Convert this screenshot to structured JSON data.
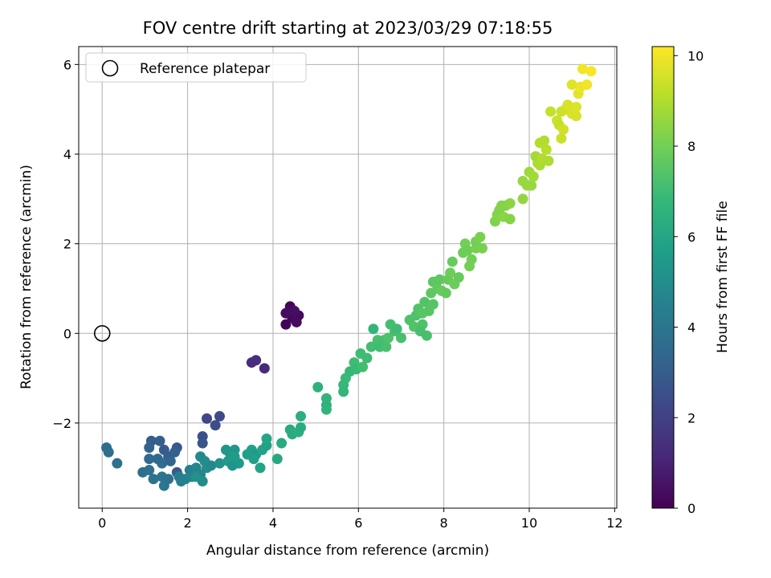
{
  "chart_data": {
    "type": "scatter",
    "title": "FOV centre drift starting at 2023/03/29 07:18:55",
    "xlabel": "Angular distance from reference (arcmin)",
    "ylabel": "Rotation from reference (arcmin)",
    "xlim": [
      -0.55,
      12.05
    ],
    "ylim": [
      -3.9,
      6.4
    ],
    "xticks": [
      0,
      2,
      4,
      6,
      8,
      10,
      12
    ],
    "yticks": [
      -2,
      0,
      2,
      4,
      6
    ],
    "grid": true,
    "legend": {
      "position": "top-left",
      "entries": [
        "Reference platepar"
      ]
    },
    "reference_point": {
      "x": 0,
      "y": 0,
      "label": "Reference platepar"
    },
    "colorbar": {
      "label": "Hours from first FF file",
      "range": [
        0,
        10.2
      ],
      "ticks": [
        0,
        2,
        4,
        6,
        8,
        10
      ],
      "colormap": "viridis",
      "colors": [
        "#440154",
        "#482878",
        "#3e4989",
        "#31688e",
        "#26828e",
        "#1f9e89",
        "#35b779",
        "#6ece58",
        "#b5de2b",
        "#fde725"
      ]
    },
    "points": [
      {
        "x": 4.3,
        "y": 0.2,
        "c": 0.1
      },
      {
        "x": 4.45,
        "y": 0.35,
        "c": 0.2
      },
      {
        "x": 4.4,
        "y": 0.6,
        "c": 0.15
      },
      {
        "x": 4.6,
        "y": 0.4,
        "c": 0.25
      },
      {
        "x": 4.55,
        "y": 0.25,
        "c": 0.3
      },
      {
        "x": 4.3,
        "y": 0.45,
        "c": 0.35
      },
      {
        "x": 4.5,
        "y": 0.5,
        "c": 0.4
      },
      {
        "x": 3.5,
        "y": -0.65,
        "c": 1.3
      },
      {
        "x": 3.6,
        "y": -0.6,
        "c": 1.4
      },
      {
        "x": 3.8,
        "y": -0.78,
        "c": 1.2
      },
      {
        "x": 2.45,
        "y": -1.9,
        "c": 2.2
      },
      {
        "x": 2.75,
        "y": -1.85,
        "c": 2.3
      },
      {
        "x": 2.65,
        "y": -2.05,
        "c": 2.4
      },
      {
        "x": 2.35,
        "y": -2.3,
        "c": 2.6
      },
      {
        "x": 2.35,
        "y": -2.45,
        "c": 2.7
      },
      {
        "x": 1.15,
        "y": -2.4,
        "c": 3.0
      },
      {
        "x": 1.35,
        "y": -2.4,
        "c": 3.1
      },
      {
        "x": 1.1,
        "y": -2.55,
        "c": 3.2
      },
      {
        "x": 1.45,
        "y": -2.6,
        "c": 2.9
      },
      {
        "x": 1.75,
        "y": -2.55,
        "c": 2.8
      },
      {
        "x": 1.55,
        "y": -2.75,
        "c": 3.0
      },
      {
        "x": 1.7,
        "y": -2.65,
        "c": 3.1
      },
      {
        "x": 1.1,
        "y": -2.8,
        "c": 3.5
      },
      {
        "x": 1.3,
        "y": -2.8,
        "c": 3.4
      },
      {
        "x": 1.4,
        "y": -2.9,
        "c": 3.6
      },
      {
        "x": 1.6,
        "y": -2.85,
        "c": 3.3
      },
      {
        "x": 0.95,
        "y": -3.1,
        "c": 3.7
      },
      {
        "x": 1.1,
        "y": -3.05,
        "c": 3.8
      },
      {
        "x": 1.2,
        "y": -3.25,
        "c": 3.9
      },
      {
        "x": 1.4,
        "y": -3.2,
        "c": 4.0
      },
      {
        "x": 1.45,
        "y": -3.4,
        "c": 4.1
      },
      {
        "x": 1.55,
        "y": -3.25,
        "c": 3.8
      },
      {
        "x": 1.75,
        "y": -3.1,
        "c": 2.9
      },
      {
        "x": 1.8,
        "y": -3.2,
        "c": 4.3
      },
      {
        "x": 1.85,
        "y": -3.3,
        "c": 4.4
      },
      {
        "x": 1.95,
        "y": -3.25,
        "c": 4.5
      },
      {
        "x": 2.1,
        "y": -3.2,
        "c": 4.6
      },
      {
        "x": 2.05,
        "y": -3.05,
        "c": 4.4
      },
      {
        "x": 2.2,
        "y": -3.0,
        "c": 4.7
      },
      {
        "x": 0.1,
        "y": -2.55,
        "c": 3.6
      },
      {
        "x": 0.15,
        "y": -2.65,
        "c": 3.7
      },
      {
        "x": 0.35,
        "y": -2.9,
        "c": 3.8
      },
      {
        "x": 2.3,
        "y": -2.75,
        "c": 4.8
      },
      {
        "x": 2.4,
        "y": -2.85,
        "c": 4.9
      },
      {
        "x": 2.45,
        "y": -3.0,
        "c": 5.0
      },
      {
        "x": 2.55,
        "y": -2.95,
        "c": 4.8
      },
      {
        "x": 2.3,
        "y": -3.15,
        "c": 4.7
      },
      {
        "x": 2.35,
        "y": -3.3,
        "c": 4.9
      },
      {
        "x": 2.2,
        "y": -3.2,
        "c": 5.1
      },
      {
        "x": 2.75,
        "y": -2.9,
        "c": 5.2
      },
      {
        "x": 2.9,
        "y": -2.6,
        "c": 5.3
      },
      {
        "x": 3.0,
        "y": -2.7,
        "c": 5.4
      },
      {
        "x": 2.95,
        "y": -2.85,
        "c": 5.5
      },
      {
        "x": 3.1,
        "y": -2.6,
        "c": 5.4
      },
      {
        "x": 3.1,
        "y": -2.75,
        "c": 5.6
      },
      {
        "x": 3.2,
        "y": -2.9,
        "c": 5.5
      },
      {
        "x": 3.05,
        "y": -2.95,
        "c": 5.3
      },
      {
        "x": 3.4,
        "y": -2.7,
        "c": 5.7
      },
      {
        "x": 3.5,
        "y": -2.6,
        "c": 5.8
      },
      {
        "x": 3.6,
        "y": -2.7,
        "c": 5.6
      },
      {
        "x": 3.55,
        "y": -2.8,
        "c": 5.7
      },
      {
        "x": 3.75,
        "y": -2.6,
        "c": 5.9
      },
      {
        "x": 3.85,
        "y": -2.5,
        "c": 5.8
      },
      {
        "x": 3.85,
        "y": -2.35,
        "c": 6.0
      },
      {
        "x": 3.7,
        "y": -3.0,
        "c": 5.9
      },
      {
        "x": 4.1,
        "y": -2.8,
        "c": 6.1
      },
      {
        "x": 4.2,
        "y": -2.45,
        "c": 6.2
      },
      {
        "x": 4.4,
        "y": -2.15,
        "c": 6.2
      },
      {
        "x": 4.45,
        "y": -2.25,
        "c": 6.3
      },
      {
        "x": 4.6,
        "y": -2.2,
        "c": 6.4
      },
      {
        "x": 4.65,
        "y": -2.1,
        "c": 6.3
      },
      {
        "x": 4.65,
        "y": -1.85,
        "c": 6.4
      },
      {
        "x": 5.05,
        "y": -1.2,
        "c": 6.5
      },
      {
        "x": 5.25,
        "y": -1.45,
        "c": 6.6
      },
      {
        "x": 5.25,
        "y": -1.6,
        "c": 6.5
      },
      {
        "x": 5.25,
        "y": -1.7,
        "c": 6.6
      },
      {
        "x": 5.65,
        "y": -1.3,
        "c": 6.7
      },
      {
        "x": 5.65,
        "y": -1.15,
        "c": 6.8
      },
      {
        "x": 5.7,
        "y": -1.0,
        "c": 6.9
      },
      {
        "x": 5.8,
        "y": -0.85,
        "c": 6.8
      },
      {
        "x": 5.9,
        "y": -0.65,
        "c": 7.0
      },
      {
        "x": 5.95,
        "y": -0.8,
        "c": 6.9
      },
      {
        "x": 6.05,
        "y": -0.45,
        "c": 7.0
      },
      {
        "x": 6.1,
        "y": -0.75,
        "c": 7.1
      },
      {
        "x": 6.2,
        "y": -0.55,
        "c": 7.0
      },
      {
        "x": 6.3,
        "y": -0.3,
        "c": 7.1
      },
      {
        "x": 6.35,
        "y": 0.1,
        "c": 6.7
      },
      {
        "x": 6.45,
        "y": -0.15,
        "c": 7.2
      },
      {
        "x": 6.5,
        "y": -0.3,
        "c": 7.0
      },
      {
        "x": 6.6,
        "y": -0.15,
        "c": 7.1
      },
      {
        "x": 6.65,
        "y": -0.3,
        "c": 7.2
      },
      {
        "x": 6.7,
        "y": -0.1,
        "c": 7.3
      },
      {
        "x": 6.75,
        "y": 0.2,
        "c": 7.1
      },
      {
        "x": 6.85,
        "y": 0.05,
        "c": 7.2
      },
      {
        "x": 6.9,
        "y": 0.1,
        "c": 7.0
      },
      {
        "x": 7.0,
        "y": -0.1,
        "c": 7.2
      },
      {
        "x": 7.2,
        "y": 0.3,
        "c": 7.3
      },
      {
        "x": 7.3,
        "y": 0.15,
        "c": 7.4
      },
      {
        "x": 7.35,
        "y": 0.4,
        "c": 7.3
      },
      {
        "x": 7.4,
        "y": 0.55,
        "c": 7.4
      },
      {
        "x": 7.5,
        "y": 0.45,
        "c": 7.5
      },
      {
        "x": 7.55,
        "y": 0.7,
        "c": 7.4
      },
      {
        "x": 7.5,
        "y": 0.2,
        "c": 7.3
      },
      {
        "x": 7.45,
        "y": 0.05,
        "c": 7.2
      },
      {
        "x": 7.6,
        "y": -0.05,
        "c": 7.2
      },
      {
        "x": 7.65,
        "y": 0.5,
        "c": 7.5
      },
      {
        "x": 7.7,
        "y": 0.9,
        "c": 7.6
      },
      {
        "x": 7.75,
        "y": 0.65,
        "c": 7.5
      },
      {
        "x": 7.75,
        "y": 1.15,
        "c": 7.6
      },
      {
        "x": 7.85,
        "y": 1.0,
        "c": 7.7
      },
      {
        "x": 7.9,
        "y": 1.2,
        "c": 7.6
      },
      {
        "x": 7.95,
        "y": 0.95,
        "c": 7.8
      },
      {
        "x": 8.05,
        "y": 0.9,
        "c": 7.7
      },
      {
        "x": 8.1,
        "y": 1.2,
        "c": 7.8
      },
      {
        "x": 8.15,
        "y": 1.35,
        "c": 7.9
      },
      {
        "x": 8.2,
        "y": 1.6,
        "c": 7.8
      },
      {
        "x": 8.25,
        "y": 1.1,
        "c": 7.9
      },
      {
        "x": 8.35,
        "y": 1.25,
        "c": 7.8
      },
      {
        "x": 8.45,
        "y": 1.8,
        "c": 7.9
      },
      {
        "x": 8.5,
        "y": 2.0,
        "c": 8.0
      },
      {
        "x": 8.55,
        "y": 1.85,
        "c": 7.9
      },
      {
        "x": 8.6,
        "y": 1.5,
        "c": 8.0
      },
      {
        "x": 8.65,
        "y": 1.65,
        "c": 8.0
      },
      {
        "x": 8.75,
        "y": 1.9,
        "c": 8.1
      },
      {
        "x": 8.75,
        "y": 2.05,
        "c": 8.0
      },
      {
        "x": 8.85,
        "y": 2.15,
        "c": 8.1
      },
      {
        "x": 8.9,
        "y": 1.9,
        "c": 8.1
      },
      {
        "x": 9.2,
        "y": 2.5,
        "c": 8.2
      },
      {
        "x": 9.25,
        "y": 2.65,
        "c": 8.3
      },
      {
        "x": 9.3,
        "y": 2.75,
        "c": 8.2
      },
      {
        "x": 9.35,
        "y": 2.85,
        "c": 8.3
      },
      {
        "x": 9.4,
        "y": 2.6,
        "c": 8.4
      },
      {
        "x": 9.45,
        "y": 2.85,
        "c": 8.3
      },
      {
        "x": 9.55,
        "y": 2.9,
        "c": 8.4
      },
      {
        "x": 9.55,
        "y": 2.55,
        "c": 8.3
      },
      {
        "x": 9.85,
        "y": 3.0,
        "c": 8.5
      },
      {
        "x": 9.85,
        "y": 3.4,
        "c": 8.6
      },
      {
        "x": 9.95,
        "y": 3.3,
        "c": 8.6
      },
      {
        "x": 10.0,
        "y": 3.6,
        "c": 8.7
      },
      {
        "x": 10.05,
        "y": 3.3,
        "c": 8.6
      },
      {
        "x": 10.1,
        "y": 3.5,
        "c": 8.8
      },
      {
        "x": 10.2,
        "y": 3.8,
        "c": 8.9
      },
      {
        "x": 10.15,
        "y": 3.95,
        "c": 8.8
      },
      {
        "x": 10.25,
        "y": 3.75,
        "c": 8.9
      },
      {
        "x": 10.3,
        "y": 3.9,
        "c": 9.0
      },
      {
        "x": 10.25,
        "y": 4.25,
        "c": 9.0
      },
      {
        "x": 10.35,
        "y": 4.3,
        "c": 9.0
      },
      {
        "x": 10.4,
        "y": 4.1,
        "c": 9.1
      },
      {
        "x": 10.45,
        "y": 3.85,
        "c": 8.9
      },
      {
        "x": 10.5,
        "y": 4.95,
        "c": 9.3
      },
      {
        "x": 10.65,
        "y": 4.75,
        "c": 9.4
      },
      {
        "x": 10.7,
        "y": 4.65,
        "c": 9.3
      },
      {
        "x": 10.75,
        "y": 4.95,
        "c": 9.4
      },
      {
        "x": 10.8,
        "y": 4.55,
        "c": 9.5
      },
      {
        "x": 10.75,
        "y": 4.35,
        "c": 9.4
      },
      {
        "x": 10.85,
        "y": 5.0,
        "c": 9.5
      },
      {
        "x": 10.9,
        "y": 5.1,
        "c": 9.6
      },
      {
        "x": 11.0,
        "y": 4.9,
        "c": 9.6
      },
      {
        "x": 11.0,
        "y": 5.55,
        "c": 9.7
      },
      {
        "x": 11.1,
        "y": 5.05,
        "c": 9.7
      },
      {
        "x": 11.1,
        "y": 4.85,
        "c": 9.6
      },
      {
        "x": 11.15,
        "y": 5.35,
        "c": 9.8
      },
      {
        "x": 11.2,
        "y": 5.5,
        "c": 9.9
      },
      {
        "x": 11.25,
        "y": 5.9,
        "c": 10.0
      },
      {
        "x": 11.35,
        "y": 5.55,
        "c": 10.0
      },
      {
        "x": 11.45,
        "y": 5.85,
        "c": 10.1
      }
    ]
  }
}
